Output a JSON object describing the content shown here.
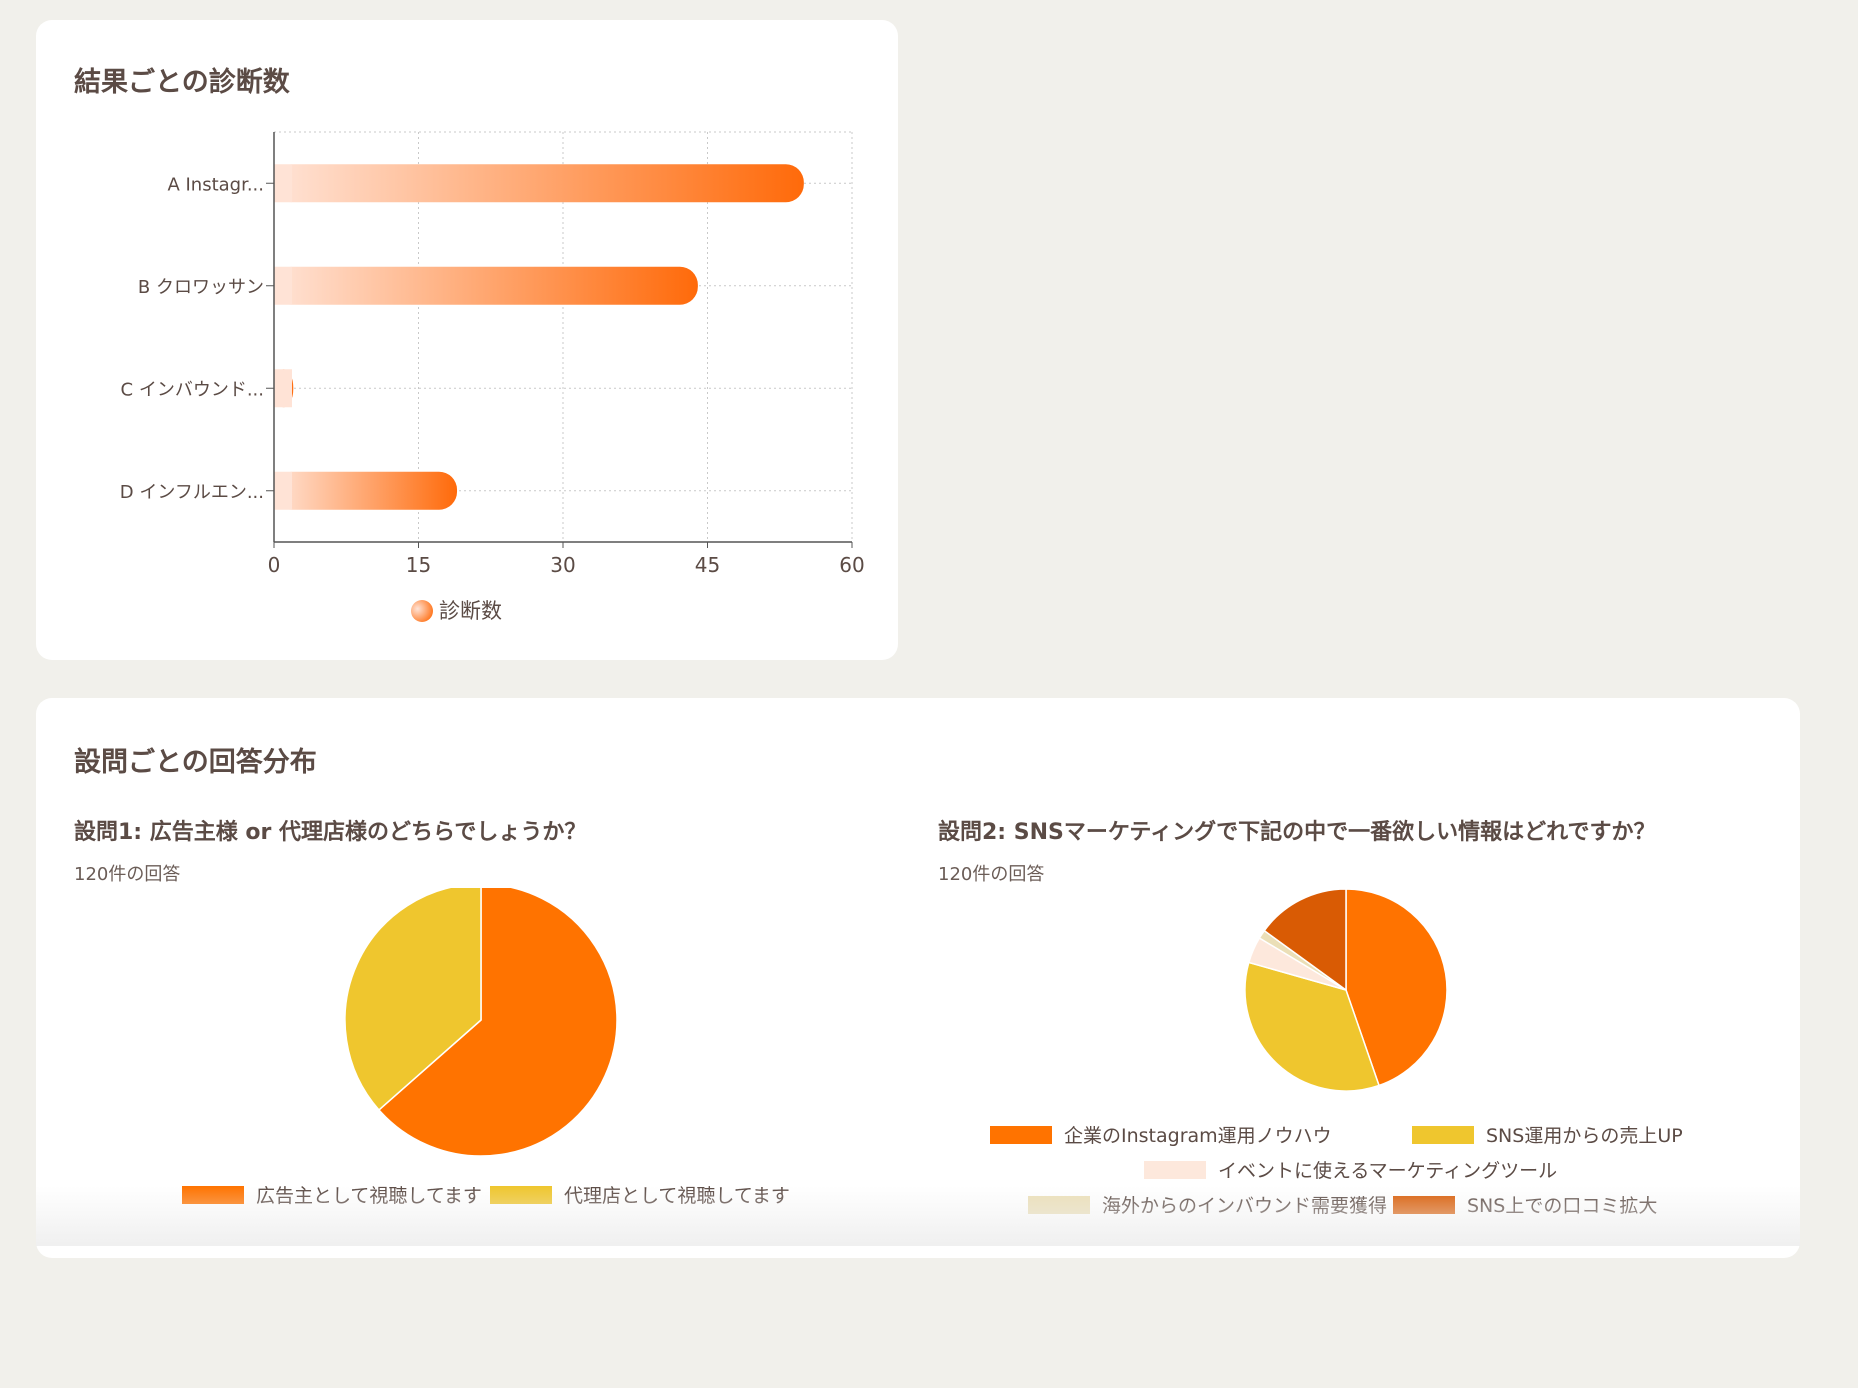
{
  "bar_section": {
    "title": "結果ごとの診断数"
  },
  "pie_section": {
    "title": "設問ごとの回答分布",
    "questions": [
      {
        "title": "設問1: 広告主様 or 代理店様のどちらでしょうか？",
        "count": "120件の回答"
      },
      {
        "title": "設問2: SNSマーケティングで下記の中で一番欲しい情報はどれですか？",
        "count": "120件の回答"
      }
    ]
  },
  "colors": {
    "bar_start": "#ffe3d6",
    "bar_end": "#ff6a0a",
    "orange": "#ff7300",
    "yellow": "#efc62e",
    "peach": "#fde8dc",
    "beige": "#ebdfb7",
    "dark_orange": "#d95b04"
  },
  "chart_data": [
    {
      "type": "bar",
      "orientation": "horizontal",
      "categories": [
        "A Instagr...",
        "B クロワッサン",
        "C インバウンド...",
        "D インフルエン..."
      ],
      "series": [
        {
          "name": "診断数",
          "values": [
            55,
            44,
            2,
            19
          ]
        }
      ],
      "xlim": [
        0,
        60
      ],
      "xticks": [
        0,
        15,
        30,
        45,
        60
      ],
      "grid": true,
      "legend": "bottom"
    },
    {
      "type": "pie",
      "labels": [
        "広告主として視聴してます",
        "代理店として視聴してます"
      ],
      "values": [
        63.5,
        36.5
      ],
      "colors": [
        "#ff7300",
        "#efc62e"
      ],
      "legend": "bottom"
    },
    {
      "type": "pie",
      "labels": [
        "企業のInstagram運用ノウハウ",
        "SNS運用からの売上UP",
        "イベントに使えるマーケティングツール",
        "海外からのインバウンド需要獲得",
        "SNS上での口コミ拡大"
      ],
      "values": [
        44.7,
        34.7,
        4.2,
        1.4,
        15.0
      ],
      "colors": [
        "#ff7300",
        "#efc62e",
        "#fde8dc",
        "#ebdfb7",
        "#d95b04"
      ],
      "legend": "bottom"
    }
  ]
}
